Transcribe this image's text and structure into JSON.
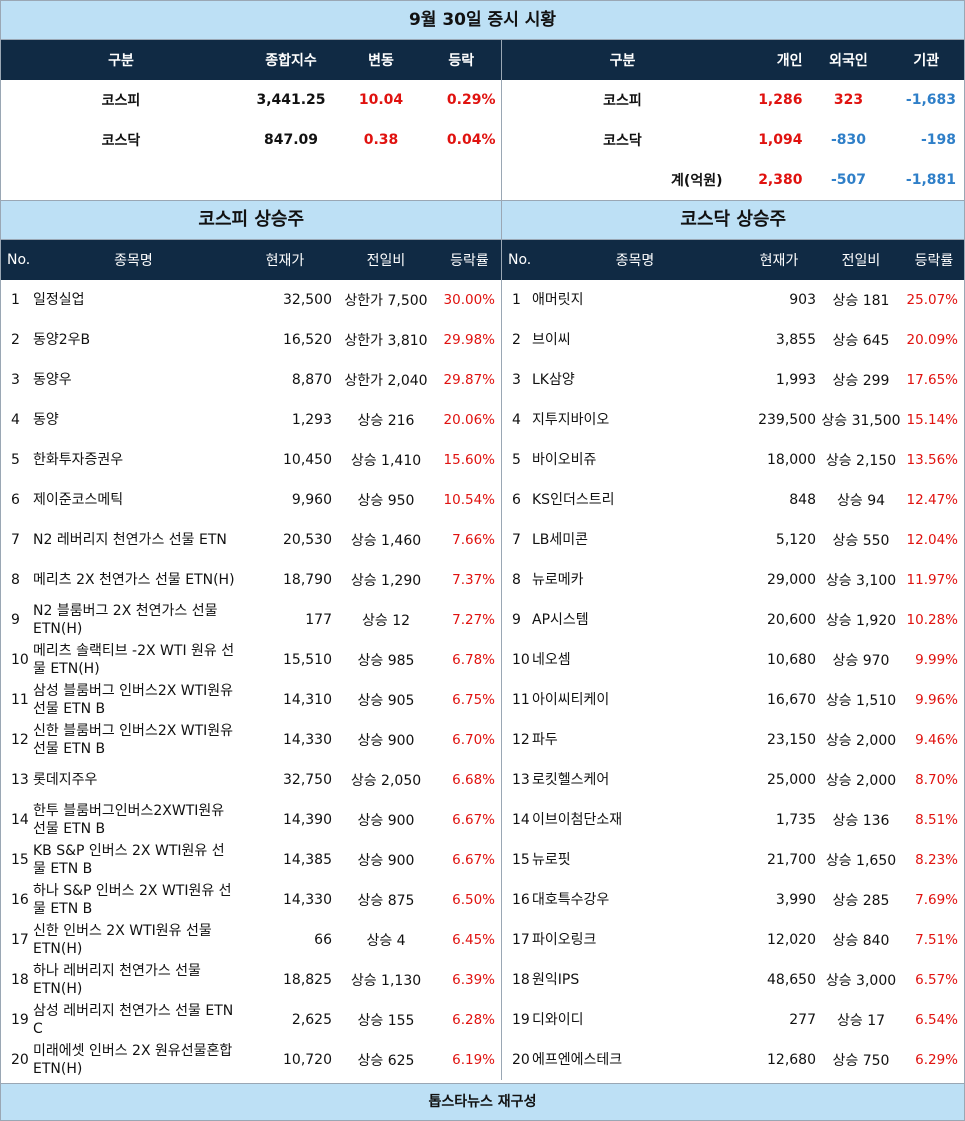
{
  "title": "9월 30일 증시 시황",
  "summary_left": {
    "headers": [
      "구분",
      "종합지수",
      "변동",
      "등락"
    ],
    "rows": [
      {
        "name": "코스피",
        "index": "3,441.25",
        "change": "10.04",
        "rate": "0.29%"
      },
      {
        "name": "코스닥",
        "index": "847.09",
        "change": "0.38",
        "rate": "0.04%"
      }
    ]
  },
  "summary_right": {
    "headers": [
      "구분",
      "개인",
      "외국인",
      "기관"
    ],
    "rows": [
      {
        "name": "코스피",
        "individual": "1,286",
        "foreign": "323",
        "institution": "-1,683"
      },
      {
        "name": "코스닥",
        "individual": "1,094",
        "foreign": "-830",
        "institution": "-198"
      },
      {
        "name": "계(억원)",
        "individual": "2,380",
        "foreign": "-507",
        "institution": "-1,881"
      }
    ]
  },
  "kospi_title": "코스피 상승주",
  "kosdaq_title": "코스닥 상승주",
  "list_headers": [
    "No.",
    "종목명",
    "현재가",
    "전일비",
    "등락률"
  ],
  "kospi": [
    {
      "no": "1",
      "name": "일정실업",
      "price": "32,500",
      "change": "상한가 7,500",
      "rate": "30.00%"
    },
    {
      "no": "2",
      "name": "동양2우B",
      "price": "16,520",
      "change": "상한가 3,810",
      "rate": "29.98%"
    },
    {
      "no": "3",
      "name": "동양우",
      "price": "8,870",
      "change": "상한가 2,040",
      "rate": "29.87%"
    },
    {
      "no": "4",
      "name": "동양",
      "price": "1,293",
      "change": "상승 216",
      "rate": "20.06%"
    },
    {
      "no": "5",
      "name": "한화투자증권우",
      "price": "10,450",
      "change": "상승 1,410",
      "rate": "15.60%"
    },
    {
      "no": "6",
      "name": "제이준코스메틱",
      "price": "9,960",
      "change": "상승 950",
      "rate": "10.54%"
    },
    {
      "no": "7",
      "name": "N2 레버리지 천연가스 선물 ETN",
      "price": "20,530",
      "change": "상승 1,460",
      "rate": "7.66%"
    },
    {
      "no": "8",
      "name": "메리츠 2X 천연가스 선물 ETN(H)",
      "price": "18,790",
      "change": "상승 1,290",
      "rate": "7.37%"
    },
    {
      "no": "9",
      "name": "N2 블룸버그 2X 천연가스 선물 ETN(H)",
      "price": "177",
      "change": "상승 12",
      "rate": "7.27%"
    },
    {
      "no": "10",
      "name": "메리츠 솔랙티브 -2X WTI 원유 선물 ETN(H)",
      "price": "15,510",
      "change": "상승 985",
      "rate": "6.78%"
    },
    {
      "no": "11",
      "name": "삼성 블룸버그 인버스2X WTI원유선물 ETN B",
      "price": "14,310",
      "change": "상승 905",
      "rate": "6.75%"
    },
    {
      "no": "12",
      "name": "신한 블룸버그 인버스2X WTI원유선물 ETN B",
      "price": "14,330",
      "change": "상승 900",
      "rate": "6.70%"
    },
    {
      "no": "13",
      "name": "롯데지주우",
      "price": "32,750",
      "change": "상승 2,050",
      "rate": "6.68%"
    },
    {
      "no": "14",
      "name": "한투 블룸버그인버스2XWTI원유선물 ETN B",
      "price": "14,390",
      "change": "상승 900",
      "rate": "6.67%"
    },
    {
      "no": "15",
      "name": "KB S&P 인버스 2X WTI원유 선물 ETN B",
      "price": "14,385",
      "change": "상승 900",
      "rate": "6.67%"
    },
    {
      "no": "16",
      "name": "하나 S&P 인버스 2X WTI원유 선물 ETN B",
      "price": "14,330",
      "change": "상승 875",
      "rate": "6.50%"
    },
    {
      "no": "17",
      "name": "신한 인버스 2X WTI원유 선물 ETN(H)",
      "price": "66",
      "change": "상승 4",
      "rate": "6.45%"
    },
    {
      "no": "18",
      "name": "하나 레버리지 천연가스 선물 ETN(H)",
      "price": "18,825",
      "change": "상승 1,130",
      "rate": "6.39%"
    },
    {
      "no": "19",
      "name": "삼성 레버리지 천연가스 선물 ETN C",
      "price": "2,625",
      "change": "상승 155",
      "rate": "6.28%"
    },
    {
      "no": "20",
      "name": "미래에셋 인버스 2X 원유선물혼합 ETN(H)",
      "price": "10,720",
      "change": "상승 625",
      "rate": "6.19%"
    }
  ],
  "kosdaq": [
    {
      "no": "1",
      "name": "애머릿지",
      "price": "903",
      "change": "상승 181",
      "rate": "25.07%"
    },
    {
      "no": "2",
      "name": "브이씨",
      "price": "3,855",
      "change": "상승 645",
      "rate": "20.09%"
    },
    {
      "no": "3",
      "name": "LK삼양",
      "price": "1,993",
      "change": "상승 299",
      "rate": "17.65%"
    },
    {
      "no": "4",
      "name": "지투지바이오",
      "price": "239,500",
      "change": "상승 31,500",
      "rate": "15.14%"
    },
    {
      "no": "5",
      "name": "바이오비쥬",
      "price": "18,000",
      "change": "상승 2,150",
      "rate": "13.56%"
    },
    {
      "no": "6",
      "name": "KS인더스트리",
      "price": "848",
      "change": "상승 94",
      "rate": "12.47%"
    },
    {
      "no": "7",
      "name": "LB세미콘",
      "price": "5,120",
      "change": "상승 550",
      "rate": "12.04%"
    },
    {
      "no": "8",
      "name": "뉴로메카",
      "price": "29,000",
      "change": "상승 3,100",
      "rate": "11.97%"
    },
    {
      "no": "9",
      "name": "AP시스템",
      "price": "20,600",
      "change": "상승 1,920",
      "rate": "10.28%"
    },
    {
      "no": "10",
      "name": "네오셈",
      "price": "10,680",
      "change": "상승 970",
      "rate": "9.99%"
    },
    {
      "no": "11",
      "name": "아이씨티케이",
      "price": "16,670",
      "change": "상승 1,510",
      "rate": "9.96%"
    },
    {
      "no": "12",
      "name": "파두",
      "price": "23,150",
      "change": "상승 2,000",
      "rate": "9.46%"
    },
    {
      "no": "13",
      "name": "로킷헬스케어",
      "price": "25,000",
      "change": "상승 2,000",
      "rate": "8.70%"
    },
    {
      "no": "14",
      "name": "이브이첨단소재",
      "price": "1,735",
      "change": "상승 136",
      "rate": "8.51%"
    },
    {
      "no": "15",
      "name": "뉴로핏",
      "price": "21,700",
      "change": "상승 1,650",
      "rate": "8.23%"
    },
    {
      "no": "16",
      "name": "대호특수강우",
      "price": "3,990",
      "change": "상승 285",
      "rate": "7.69%"
    },
    {
      "no": "17",
      "name": "파이오링크",
      "price": "12,020",
      "change": "상승 840",
      "rate": "7.51%"
    },
    {
      "no": "18",
      "name": "원익IPS",
      "price": "48,650",
      "change": "상승 3,000",
      "rate": "6.57%"
    },
    {
      "no": "19",
      "name": "디와이디",
      "price": "277",
      "change": "상승 17",
      "rate": "6.54%"
    },
    {
      "no": "20",
      "name": "에프엔에스테크",
      "price": "12,680",
      "change": "상승 750",
      "rate": "6.29%"
    }
  ],
  "footer": "톱스타뉴스 재구성",
  "colors": {
    "header_bg": "#102a44",
    "bar_bg": "#bde0f5",
    "up": "#e0120f",
    "down": "#2f7fc8"
  }
}
